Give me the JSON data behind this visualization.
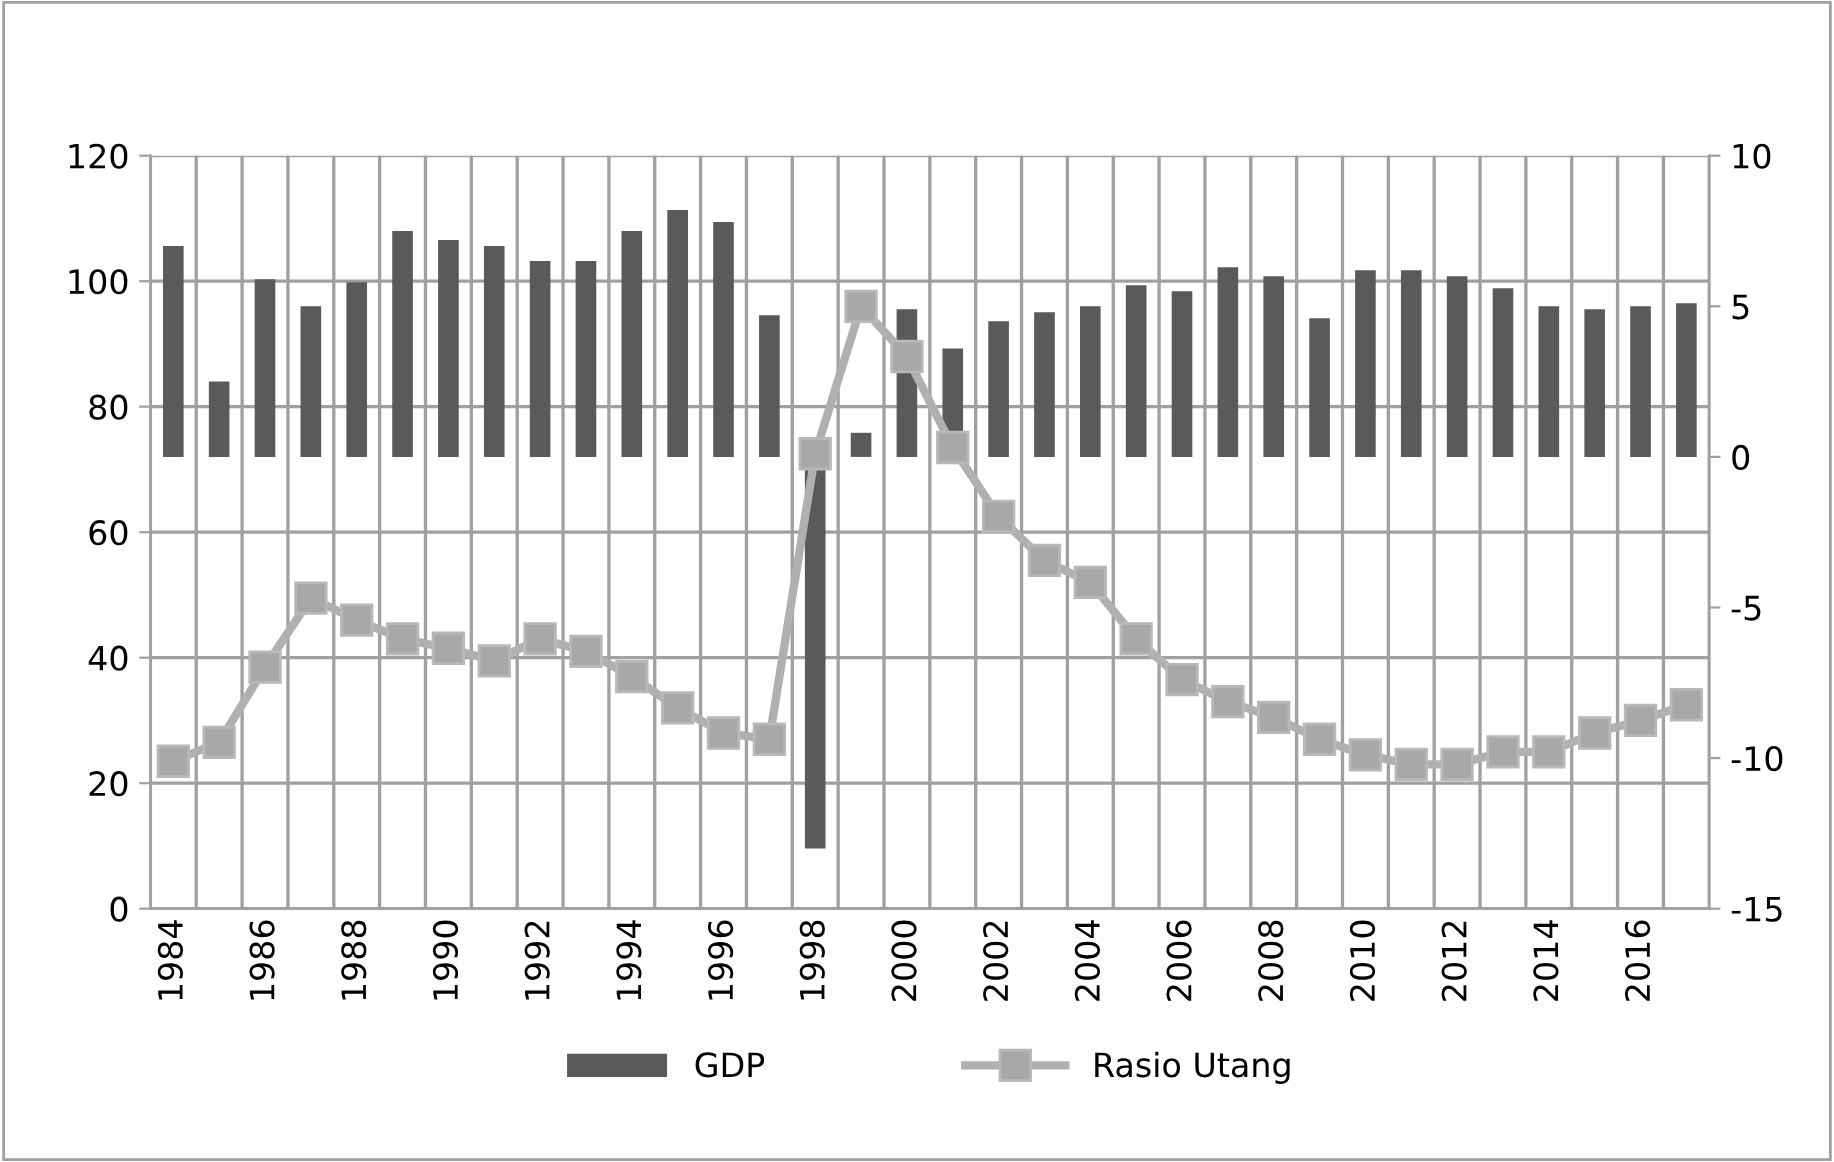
{
  "chart_data": {
    "type": "bar",
    "categories": [
      "1984",
      null,
      "1986",
      null,
      "1988",
      null,
      "1990",
      null,
      "1992",
      null,
      "1994",
      null,
      "1996",
      null,
      "1998",
      null,
      "2000",
      null,
      "2002",
      null,
      "2004",
      null,
      "2006",
      null,
      "2008",
      null,
      "2010",
      null,
      "2012",
      null,
      "2014",
      null,
      "2016",
      null
    ],
    "series": [
      {
        "name": "GDP",
        "axis": "y2",
        "color": "#5a5a5a",
        "values": [
          7.0,
          2.5,
          5.9,
          5.0,
          5.8,
          7.5,
          7.2,
          7.0,
          6.5,
          6.5,
          7.5,
          8.2,
          7.8,
          4.7,
          -13.0,
          0.8,
          4.9,
          3.6,
          4.5,
          4.8,
          5.0,
          5.7,
          5.5,
          6.3,
          6.0,
          4.6,
          6.2,
          6.2,
          6.0,
          5.6,
          5.0,
          4.9,
          5.0,
          5.1
        ]
      },
      {
        "name": "Rasio Utang",
        "type": "line",
        "axis": "y",
        "color": "#b0b0b0",
        "marker": "square",
        "values": [
          23.5,
          26.5,
          38.5,
          49.5,
          46,
          43,
          41.5,
          39.5,
          43,
          41,
          37,
          32,
          28,
          27,
          72.5,
          96,
          88,
          73.5,
          62.5,
          55.5,
          52,
          43,
          36.5,
          33,
          30.5,
          27,
          24.5,
          23,
          23,
          25,
          25,
          28,
          30,
          32.5
        ]
      }
    ],
    "ylim": [
      0,
      120
    ],
    "yticks": [
      0,
      20,
      40,
      60,
      80,
      100,
      120
    ],
    "y2lim": [
      -15,
      10
    ],
    "y2ticks": [
      -15,
      -10,
      -5,
      0,
      5,
      10
    ],
    "grid": true,
    "legend": "bottom"
  }
}
